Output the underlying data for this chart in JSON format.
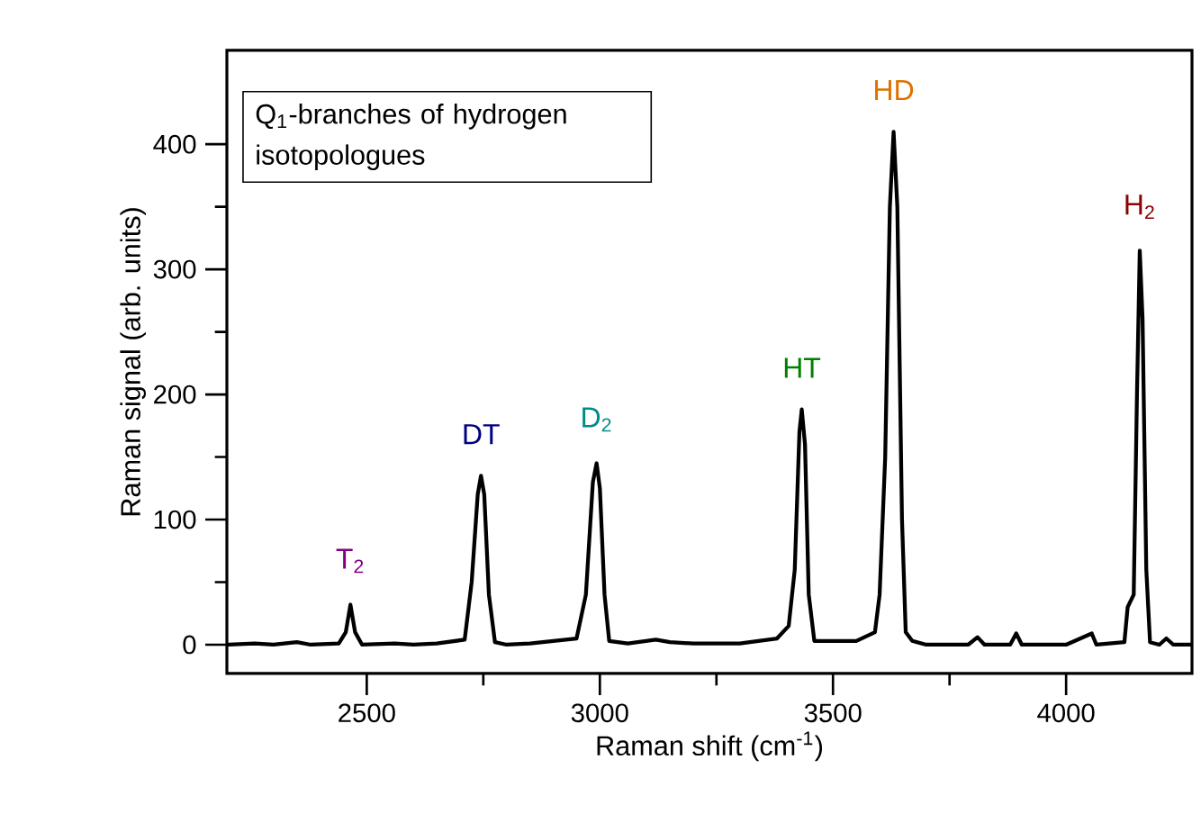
{
  "chart_data": {
    "type": "line",
    "title": "Q$_{1}$-branches of hydrogen isotopologues",
    "xlabel": "Raman shift (cm$^{-1}$)",
    "ylabel": "Raman signal (arb. units)",
    "xlim": [
      2200,
      4270
    ],
    "ylim": [
      -23,
      475
    ],
    "xticks": [
      2500,
      3000,
      3500,
      4000
    ],
    "yticks": [
      0,
      100,
      200,
      300,
      400
    ],
    "grid": false,
    "marker": "none",
    "line_style": "solid",
    "series": [
      {
        "color": "#000000",
        "x": [
          2200,
          2260,
          2300,
          2350,
          2380,
          2440,
          2455,
          2465,
          2475,
          2490,
          2560,
          2600,
          2650,
          2710,
          2725,
          2738,
          2745,
          2752,
          2762,
          2775,
          2800,
          2850,
          2900,
          2950,
          2970,
          2985,
          2993,
          3000,
          3010,
          3020,
          3060,
          3120,
          3150,
          3200,
          3300,
          3380,
          3405,
          3418,
          3428,
          3433,
          3440,
          3448,
          3460,
          3550,
          3590,
          3600,
          3612,
          3622,
          3630,
          3638,
          3648,
          3656,
          3670,
          3700,
          3790,
          3810,
          3825,
          3880,
          3893,
          3905,
          4000,
          4055,
          4065,
          4125,
          4132,
          4145,
          4152,
          4158,
          4164,
          4172,
          4180,
          4200,
          4215,
          4230,
          4270
        ],
        "values": [
          0,
          1,
          0,
          2,
          0,
          1,
          10,
          32,
          10,
          0,
          1,
          0,
          1,
          4,
          50,
          120,
          135,
          120,
          40,
          2,
          0,
          1,
          3,
          5,
          40,
          130,
          145,
          125,
          40,
          3,
          1,
          4,
          2,
          1,
          1,
          5,
          15,
          60,
          170,
          188,
          160,
          40,
          3,
          3,
          10,
          40,
          150,
          350,
          410,
          350,
          100,
          10,
          3,
          0,
          0,
          6,
          0,
          0,
          9,
          0,
          0,
          9,
          0,
          2,
          30,
          40,
          200,
          315,
          260,
          60,
          2,
          0,
          5,
          0,
          0
        ]
      }
    ],
    "annotations": [
      {
        "text": "T$_{2}$",
        "x": 2465,
        "y": 32
      },
      {
        "text": "DT",
        "x": 2745,
        "y": 135
      },
      {
        "text": "D$_{2}$",
        "x": 2993,
        "y": 145
      },
      {
        "text": "HT",
        "x": 3433,
        "y": 188
      },
      {
        "text": "HD",
        "x": 3630,
        "y": 410
      },
      {
        "text": "H$_{2}$",
        "x": 4158,
        "y": 315
      }
    ]
  }
}
